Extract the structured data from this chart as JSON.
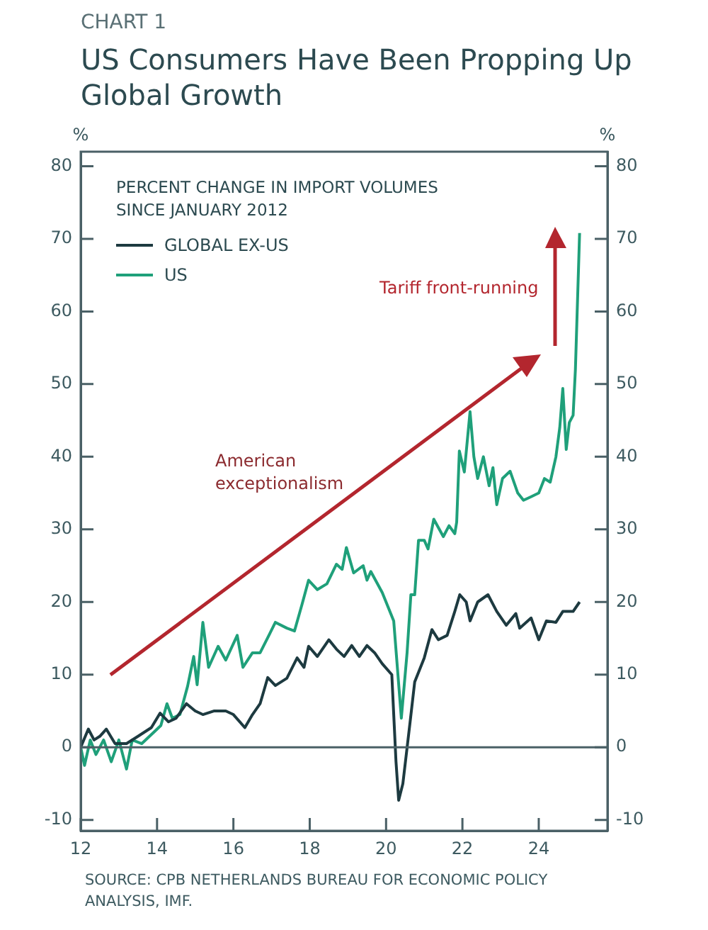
{
  "chart_data": {
    "type": "line",
    "subtitle": "CHART 1",
    "title": "US Consumers Have Been Propping Up Global Growth",
    "ylabel": "%",
    "y2label": "%",
    "legend_title": "PERCENT CHANGE IN IMPORT VOLUMES SINCE JANUARY 2012",
    "legend": "top left",
    "grid": false,
    "marker": "none",
    "line_style": "solid",
    "xlim": [
      12,
      25.8
    ],
    "xticks": [
      12,
      14,
      16,
      18,
      20,
      22,
      24
    ],
    "ylim": [
      -11.5,
      82
    ],
    "yticks": [
      -10,
      0,
      10,
      20,
      30,
      40,
      50,
      60,
      70,
      80
    ],
    "y2lim": [
      -11.5,
      82
    ],
    "y2ticks": [
      -10,
      0,
      10,
      20,
      30,
      40,
      50,
      60,
      70,
      80
    ],
    "ref_lines": [
      {
        "axis": "y",
        "value": 0,
        "color": "#4a6066"
      }
    ],
    "annotations": [
      "Tariff front-running",
      "American exceptionalism",
      "SOURCE: CPB NETHERLANDS BUREAU FOR ECONOMIC POLICY ANALYSIS, IMF."
    ],
    "series": [
      {
        "name": "GLOBAL EX-US",
        "color": "#1d3a40",
        "x": [
          12,
          12.2,
          12.35,
          12.5,
          12.67,
          12.9,
          13.2,
          13.5,
          13.85,
          14.08,
          14.3,
          14.5,
          14.77,
          15.0,
          15.2,
          15.5,
          15.8,
          16.0,
          16.3,
          16.5,
          16.7,
          16.9,
          17.1,
          17.4,
          17.67,
          17.85,
          17.97,
          18.2,
          18.5,
          18.7,
          18.9,
          19.1,
          19.3,
          19.5,
          19.7,
          19.9,
          20.15,
          20.26,
          20.33,
          20.44,
          20.63,
          20.75,
          21.0,
          21.2,
          21.37,
          21.6,
          21.8,
          21.93,
          22.1,
          22.2,
          22.4,
          22.67,
          22.9,
          23.15,
          23.4,
          23.5,
          23.8,
          24.0,
          24.2,
          24.45,
          24.63,
          24.9,
          25.07
        ],
        "values": [
          0,
          2.5,
          1,
          1.5,
          2.5,
          0.5,
          0.5,
          1.5,
          2.7,
          4.7,
          3.5,
          4,
          6,
          5,
          4.5,
          5,
          5,
          4.5,
          2.7,
          4.5,
          6,
          9.6,
          8.5,
          9.5,
          12.3,
          11,
          13.9,
          12.5,
          14.8,
          13.5,
          12.5,
          14,
          12.5,
          14,
          13,
          11.5,
          10,
          -2,
          -7.3,
          -5,
          3.5,
          9,
          12.3,
          16.2,
          14.8,
          15.4,
          18.7,
          21,
          20,
          17.4,
          20,
          21,
          18.7,
          16.8,
          18.4,
          16.4,
          17.8,
          14.8,
          17.4,
          17.2,
          18.7,
          18.7,
          20
        ]
      },
      {
        "name": "US",
        "color": "#1fa07a",
        "x": [
          12,
          12.1,
          12.25,
          12.4,
          12.6,
          12.8,
          13.0,
          13.2,
          13.35,
          13.6,
          13.9,
          14.1,
          14.26,
          14.4,
          14.6,
          14.8,
          14.96,
          15.05,
          15.2,
          15.35,
          15.6,
          15.8,
          16.1,
          16.25,
          16.5,
          16.7,
          16.93,
          17.1,
          17.4,
          17.6,
          17.8,
          17.97,
          18.2,
          18.45,
          18.7,
          18.85,
          18.96,
          19.15,
          19.4,
          19.5,
          19.6,
          19.9,
          20.2,
          20.4,
          20.55,
          20.65,
          20.75,
          20.85,
          21.0,
          21.1,
          21.25,
          21.5,
          21.65,
          21.8,
          21.85,
          21.92,
          22.05,
          22.2,
          22.3,
          22.4,
          22.55,
          22.7,
          22.8,
          22.9,
          23.05,
          23.25,
          23.45,
          23.6,
          23.8,
          24.0,
          24.15,
          24.3,
          24.45,
          24.55,
          24.63,
          24.72,
          24.8,
          24.9,
          24.96,
          25.07
        ],
        "values": [
          0,
          -2.5,
          1,
          -1,
          1,
          -2,
          1,
          -3,
          1,
          0.5,
          2,
          3,
          6,
          4,
          4.5,
          8.4,
          12.5,
          8.6,
          17.2,
          11,
          13.9,
          12,
          15.4,
          11,
          13,
          13,
          15.4,
          17.2,
          16.4,
          16,
          19.7,
          23,
          21.7,
          22.5,
          25.2,
          24.5,
          27.5,
          24,
          25,
          23,
          24.2,
          21.3,
          17.4,
          4,
          13,
          21,
          21,
          28.5,
          28.5,
          27.3,
          31.4,
          29,
          30.5,
          29.4,
          31,
          40.8,
          37.9,
          46.2,
          40,
          37,
          40,
          36,
          38.5,
          33.4,
          37,
          38,
          35,
          34,
          34.5,
          35,
          37,
          36.5,
          40,
          44,
          49.4,
          41,
          44.7,
          45.7,
          52,
          70.8
        ]
      }
    ]
  }
}
